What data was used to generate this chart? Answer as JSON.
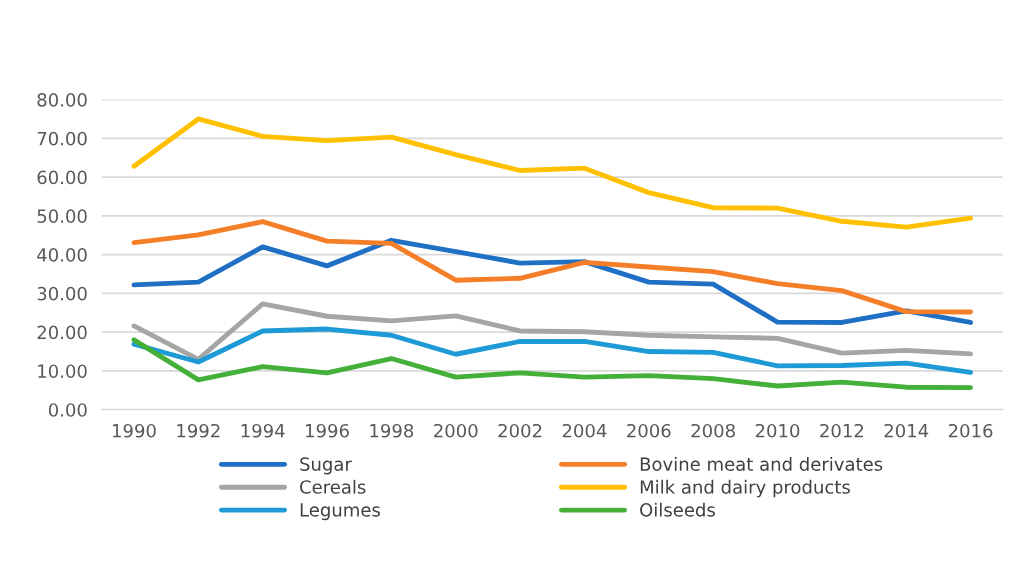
{
  "chart_data": {
    "type": "line",
    "categories": [
      "1990",
      "1992",
      "1994",
      "1996",
      "1998",
      "2000",
      "2002",
      "2004",
      "2006",
      "2008",
      "2010",
      "2012",
      "2014",
      "2016"
    ],
    "series": [
      {
        "name": "Sugar",
        "color": "#1f6fc5",
        "values": [
          32.2,
          32.9,
          42.0,
          37.1,
          43.7,
          40.8,
          37.8,
          38.2,
          32.9,
          32.4,
          22.6,
          22.5,
          25.5,
          22.5
        ]
      },
      {
        "name": "Bovine meat and derivates",
        "color": "#f57f29",
        "values": [
          43.1,
          45.1,
          48.5,
          43.5,
          42.9,
          33.4,
          33.9,
          38.0,
          36.8,
          35.6,
          32.5,
          30.7,
          25.3,
          25.2
        ]
      },
      {
        "name": "Cereals",
        "color": "#a5a5a5",
        "values": [
          21.6,
          13.0,
          27.3,
          24.1,
          22.9,
          24.2,
          20.3,
          20.1,
          19.2,
          18.8,
          18.4,
          14.6,
          15.3,
          14.4
        ]
      },
      {
        "name": "Milk and dairy products",
        "color": "#ffc000",
        "values": [
          62.8,
          75.0,
          70.5,
          69.4,
          70.3,
          65.8,
          61.7,
          62.3,
          56.0,
          52.1,
          52.0,
          48.6,
          47.1,
          49.4
        ]
      },
      {
        "name": "Legumes",
        "color": "#1e9bd7",
        "values": [
          16.9,
          12.3,
          20.3,
          20.8,
          19.2,
          14.3,
          17.6,
          17.6,
          15.0,
          14.8,
          11.3,
          11.4,
          12.0,
          9.6
        ]
      },
      {
        "name": "Oilseeds",
        "color": "#44b03a",
        "values": [
          18.0,
          7.7,
          11.1,
          9.5,
          13.2,
          8.4,
          9.5,
          8.4,
          8.8,
          8.0,
          6.1,
          7.1,
          5.8,
          5.7
        ]
      }
    ],
    "ylim": [
      0,
      80
    ],
    "yticks": [
      {
        "value": 0,
        "label": "0.00"
      },
      {
        "value": 10,
        "label": "10.00"
      },
      {
        "value": 20,
        "label": "20.00"
      },
      {
        "value": 30,
        "label": "30.00"
      },
      {
        "value": 40,
        "label": "40.00"
      },
      {
        "value": 50,
        "label": "50.00"
      },
      {
        "value": 60,
        "label": "60.00"
      },
      {
        "value": 70,
        "label": "70.00"
      },
      {
        "value": 80,
        "label": "80.00"
      }
    ],
    "grid": "y",
    "legend": "bottom",
    "marker": "none",
    "line_style": "solid"
  }
}
